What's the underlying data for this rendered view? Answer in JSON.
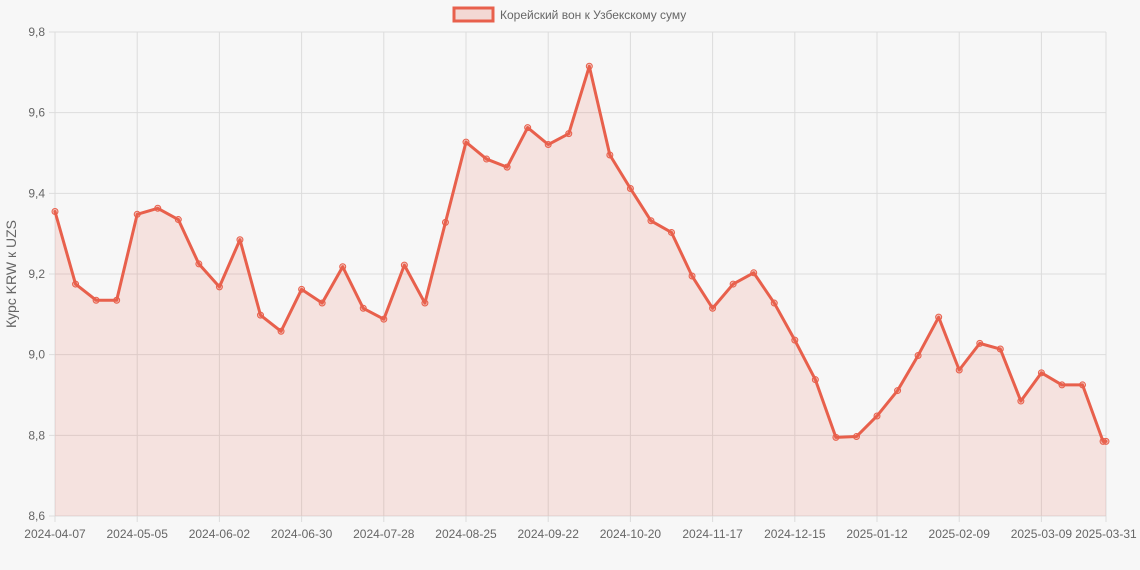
{
  "chart_data": {
    "type": "area",
    "title": "",
    "xlabel": "",
    "ylabel": "Курс KRW к UZS",
    "ylim": [
      8.6,
      9.8
    ],
    "yticks": [
      "8,6",
      "8,8",
      "9,0",
      "9,2",
      "9,4",
      "9,6",
      "9,8"
    ],
    "xtick_labels": [
      "2024-04-07",
      "2024-05-05",
      "2024-06-02",
      "2024-06-30",
      "2024-07-28",
      "2024-08-25",
      "2024-09-22",
      "2024-10-20",
      "2024-11-17",
      "2024-12-15",
      "2025-01-12",
      "2025-02-09",
      "2025-03-09",
      "2025-03-31"
    ],
    "grid": true,
    "legend_position": "top",
    "colors": {
      "line": "#e8604c",
      "fill": "rgba(232,96,76,0.14)"
    },
    "series": [
      {
        "name": "Корейский вон к Узбекскому суму",
        "x": [
          "2024-04-07",
          "2024-04-14",
          "2024-04-21",
          "2024-04-28",
          "2024-05-05",
          "2024-05-12",
          "2024-05-19",
          "2024-05-26",
          "2024-06-02",
          "2024-06-09",
          "2024-06-16",
          "2024-06-23",
          "2024-06-30",
          "2024-07-07",
          "2024-07-14",
          "2024-07-21",
          "2024-07-28",
          "2024-08-04",
          "2024-08-11",
          "2024-08-18",
          "2024-08-25",
          "2024-09-01",
          "2024-09-08",
          "2024-09-15",
          "2024-09-22",
          "2024-09-29",
          "2024-10-06",
          "2024-10-13",
          "2024-10-20",
          "2024-10-27",
          "2024-11-03",
          "2024-11-10",
          "2024-11-17",
          "2024-11-24",
          "2024-12-01",
          "2024-12-08",
          "2024-12-15",
          "2024-12-22",
          "2024-12-29",
          "2025-01-05",
          "2025-01-12",
          "2025-01-19",
          "2025-01-26",
          "2025-02-02",
          "2025-02-09",
          "2025-02-16",
          "2025-02-23",
          "2025-03-02",
          "2025-03-09",
          "2025-03-16",
          "2025-03-23",
          "2025-03-30",
          "2025-03-31"
        ],
        "values": [
          9.355,
          9.175,
          9.135,
          9.135,
          9.348,
          9.363,
          9.335,
          9.225,
          9.168,
          9.285,
          9.098,
          9.058,
          9.162,
          9.128,
          9.218,
          9.115,
          9.088,
          9.222,
          9.128,
          9.328,
          9.527,
          9.485,
          9.465,
          9.563,
          9.521,
          9.548,
          9.715,
          9.495,
          9.412,
          9.332,
          9.303,
          9.195,
          9.115,
          9.175,
          9.203,
          9.128,
          9.036,
          8.938,
          8.795,
          8.797,
          8.848,
          8.911,
          8.998,
          9.093,
          8.962,
          9.028,
          9.014,
          8.885,
          8.955,
          8.925,
          8.925,
          8.785,
          8.785
        ]
      }
    ]
  }
}
